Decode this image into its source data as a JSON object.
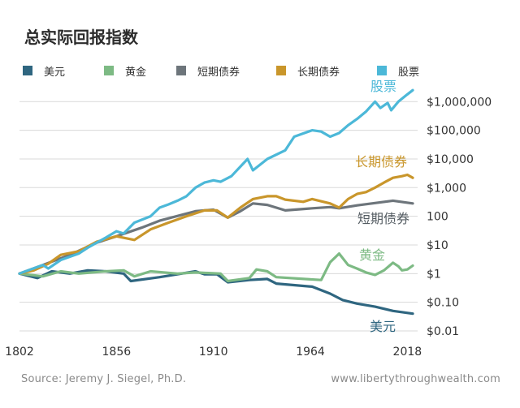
{
  "chart_data": {
    "type": "line",
    "title": "总实际回报指数",
    "x_ticks": [
      1802,
      1856,
      1910,
      1964,
      2018
    ],
    "xlim": [
      1802,
      2021
    ],
    "y_scale": "log",
    "ylim": [
      0.01,
      4000000
    ],
    "y_ticks": [
      {
        "value": 0.01,
        "label": "$0.01"
      },
      {
        "value": 0.1,
        "label": "$0.10"
      },
      {
        "value": 1,
        "label": "$1"
      },
      {
        "value": 10,
        "label": "$10"
      },
      {
        "value": 100,
        "label": "100"
      },
      {
        "value": 1000,
        "label": "$1,000"
      },
      {
        "value": 10000,
        "label": "$10,000"
      },
      {
        "value": 100000,
        "label": "$100,000"
      },
      {
        "value": 1000000,
        "label": "$1,000,000"
      }
    ],
    "grid": true,
    "legend_position": "top",
    "series": [
      {
        "name": "美元",
        "color": "#2f6680",
        "end_label": "美元",
        "points": [
          [
            1802,
            1
          ],
          [
            1812,
            0.7
          ],
          [
            1820,
            1.2
          ],
          [
            1830,
            1
          ],
          [
            1840,
            1.3
          ],
          [
            1850,
            1.2
          ],
          [
            1860,
            1
          ],
          [
            1864,
            0.55
          ],
          [
            1880,
            0.75
          ],
          [
            1900,
            1.2
          ],
          [
            1905,
            0.95
          ],
          [
            1912,
            0.95
          ],
          [
            1918,
            0.5
          ],
          [
            1930,
            0.6
          ],
          [
            1940,
            0.65
          ],
          [
            1945,
            0.45
          ],
          [
            1965,
            0.35
          ],
          [
            1975,
            0.2
          ],
          [
            1982,
            0.12
          ],
          [
            1990,
            0.09
          ],
          [
            2000,
            0.07
          ],
          [
            2010,
            0.05
          ],
          [
            2021,
            0.04
          ]
        ]
      },
      {
        "name": "黄金",
        "color": "#7dba84",
        "end_label": "黄金",
        "points": [
          [
            1802,
            1
          ],
          [
            1815,
            0.8
          ],
          [
            1825,
            1.2
          ],
          [
            1835,
            1
          ],
          [
            1850,
            1.2
          ],
          [
            1860,
            1.3
          ],
          [
            1866,
            0.8
          ],
          [
            1875,
            1.2
          ],
          [
            1890,
            1
          ],
          [
            1900,
            1.1
          ],
          [
            1914,
            1
          ],
          [
            1918,
            0.55
          ],
          [
            1930,
            0.7
          ],
          [
            1934,
            1.4
          ],
          [
            1940,
            1.2
          ],
          [
            1945,
            0.75
          ],
          [
            1970,
            0.6
          ],
          [
            1975,
            2.5
          ],
          [
            1980,
            5
          ],
          [
            1985,
            2
          ],
          [
            1990,
            1.5
          ],
          [
            1995,
            1.1
          ],
          [
            2000,
            0.9
          ],
          [
            2005,
            1.3
          ],
          [
            2010,
            2.4
          ],
          [
            2013,
            1.8
          ],
          [
            2015,
            1.3
          ],
          [
            2018,
            1.4
          ],
          [
            2021,
            1.9
          ]
        ]
      },
      {
        "name": "短期债券",
        "color": "#6d757b",
        "end_label": "短期债券",
        "points": [
          [
            1802,
            1
          ],
          [
            1815,
            2
          ],
          [
            1830,
            4.5
          ],
          [
            1845,
            12
          ],
          [
            1856,
            20
          ],
          [
            1870,
            40
          ],
          [
            1880,
            70
          ],
          [
            1900,
            150
          ],
          [
            1910,
            170
          ],
          [
            1918,
            90
          ],
          [
            1925,
            150
          ],
          [
            1932,
            280
          ],
          [
            1940,
            250
          ],
          [
            1950,
            160
          ],
          [
            1965,
            190
          ],
          [
            1975,
            210
          ],
          [
            1980,
            190
          ],
          [
            1990,
            240
          ],
          [
            2000,
            290
          ],
          [
            2010,
            350
          ],
          [
            2021,
            280
          ]
        ]
      },
      {
        "name": "长期债券",
        "color": "#c9962b",
        "end_label": "长期债券",
        "points": [
          [
            1802,
            1
          ],
          [
            1810,
            1.3
          ],
          [
            1818,
            2.2
          ],
          [
            1825,
            4.5
          ],
          [
            1835,
            6
          ],
          [
            1845,
            13
          ],
          [
            1856,
            20
          ],
          [
            1866,
            15
          ],
          [
            1875,
            35
          ],
          [
            1885,
            60
          ],
          [
            1895,
            100
          ],
          [
            1905,
            160
          ],
          [
            1912,
            160
          ],
          [
            1918,
            90
          ],
          [
            1925,
            200
          ],
          [
            1932,
            400
          ],
          [
            1940,
            500
          ],
          [
            1945,
            500
          ],
          [
            1950,
            380
          ],
          [
            1960,
            320
          ],
          [
            1965,
            400
          ],
          [
            1975,
            280
          ],
          [
            1980,
            200
          ],
          [
            1985,
            400
          ],
          [
            1990,
            600
          ],
          [
            1995,
            700
          ],
          [
            2000,
            1000
          ],
          [
            2005,
            1500
          ],
          [
            2010,
            2200
          ],
          [
            2015,
            2500
          ],
          [
            2018,
            2800
          ],
          [
            2021,
            2200
          ]
        ]
      },
      {
        "name": "股票",
        "color": "#4cb8d8",
        "end_label": "股票",
        "points": [
          [
            1802,
            1
          ],
          [
            1815,
            2
          ],
          [
            1818,
            1.5
          ],
          [
            1825,
            3
          ],
          [
            1835,
            5
          ],
          [
            1840,
            8
          ],
          [
            1845,
            12
          ],
          [
            1850,
            18
          ],
          [
            1856,
            30
          ],
          [
            1860,
            25
          ],
          [
            1866,
            60
          ],
          [
            1875,
            100
          ],
          [
            1880,
            200
          ],
          [
            1885,
            260
          ],
          [
            1890,
            350
          ],
          [
            1895,
            500
          ],
          [
            1900,
            1000
          ],
          [
            1905,
            1500
          ],
          [
            1910,
            1800
          ],
          [
            1914,
            1600
          ],
          [
            1920,
            2500
          ],
          [
            1929,
            10000
          ],
          [
            1932,
            4000
          ],
          [
            1940,
            10000
          ],
          [
            1950,
            20000
          ],
          [
            1955,
            60000
          ],
          [
            1965,
            100000
          ],
          [
            1970,
            90000
          ],
          [
            1975,
            60000
          ],
          [
            1980,
            80000
          ],
          [
            1985,
            150000
          ],
          [
            1990,
            250000
          ],
          [
            1995,
            450000
          ],
          [
            2000,
            1000000
          ],
          [
            2003,
            600000
          ],
          [
            2007,
            900000
          ],
          [
            2009,
            500000
          ],
          [
            2013,
            1000000
          ],
          [
            2018,
            1800000
          ],
          [
            2021,
            2500000
          ]
        ]
      }
    ]
  },
  "footer": {
    "source": "Source: Jeremy J. Siegel, Ph.D.",
    "website": "www.libertythroughwealth.com"
  }
}
